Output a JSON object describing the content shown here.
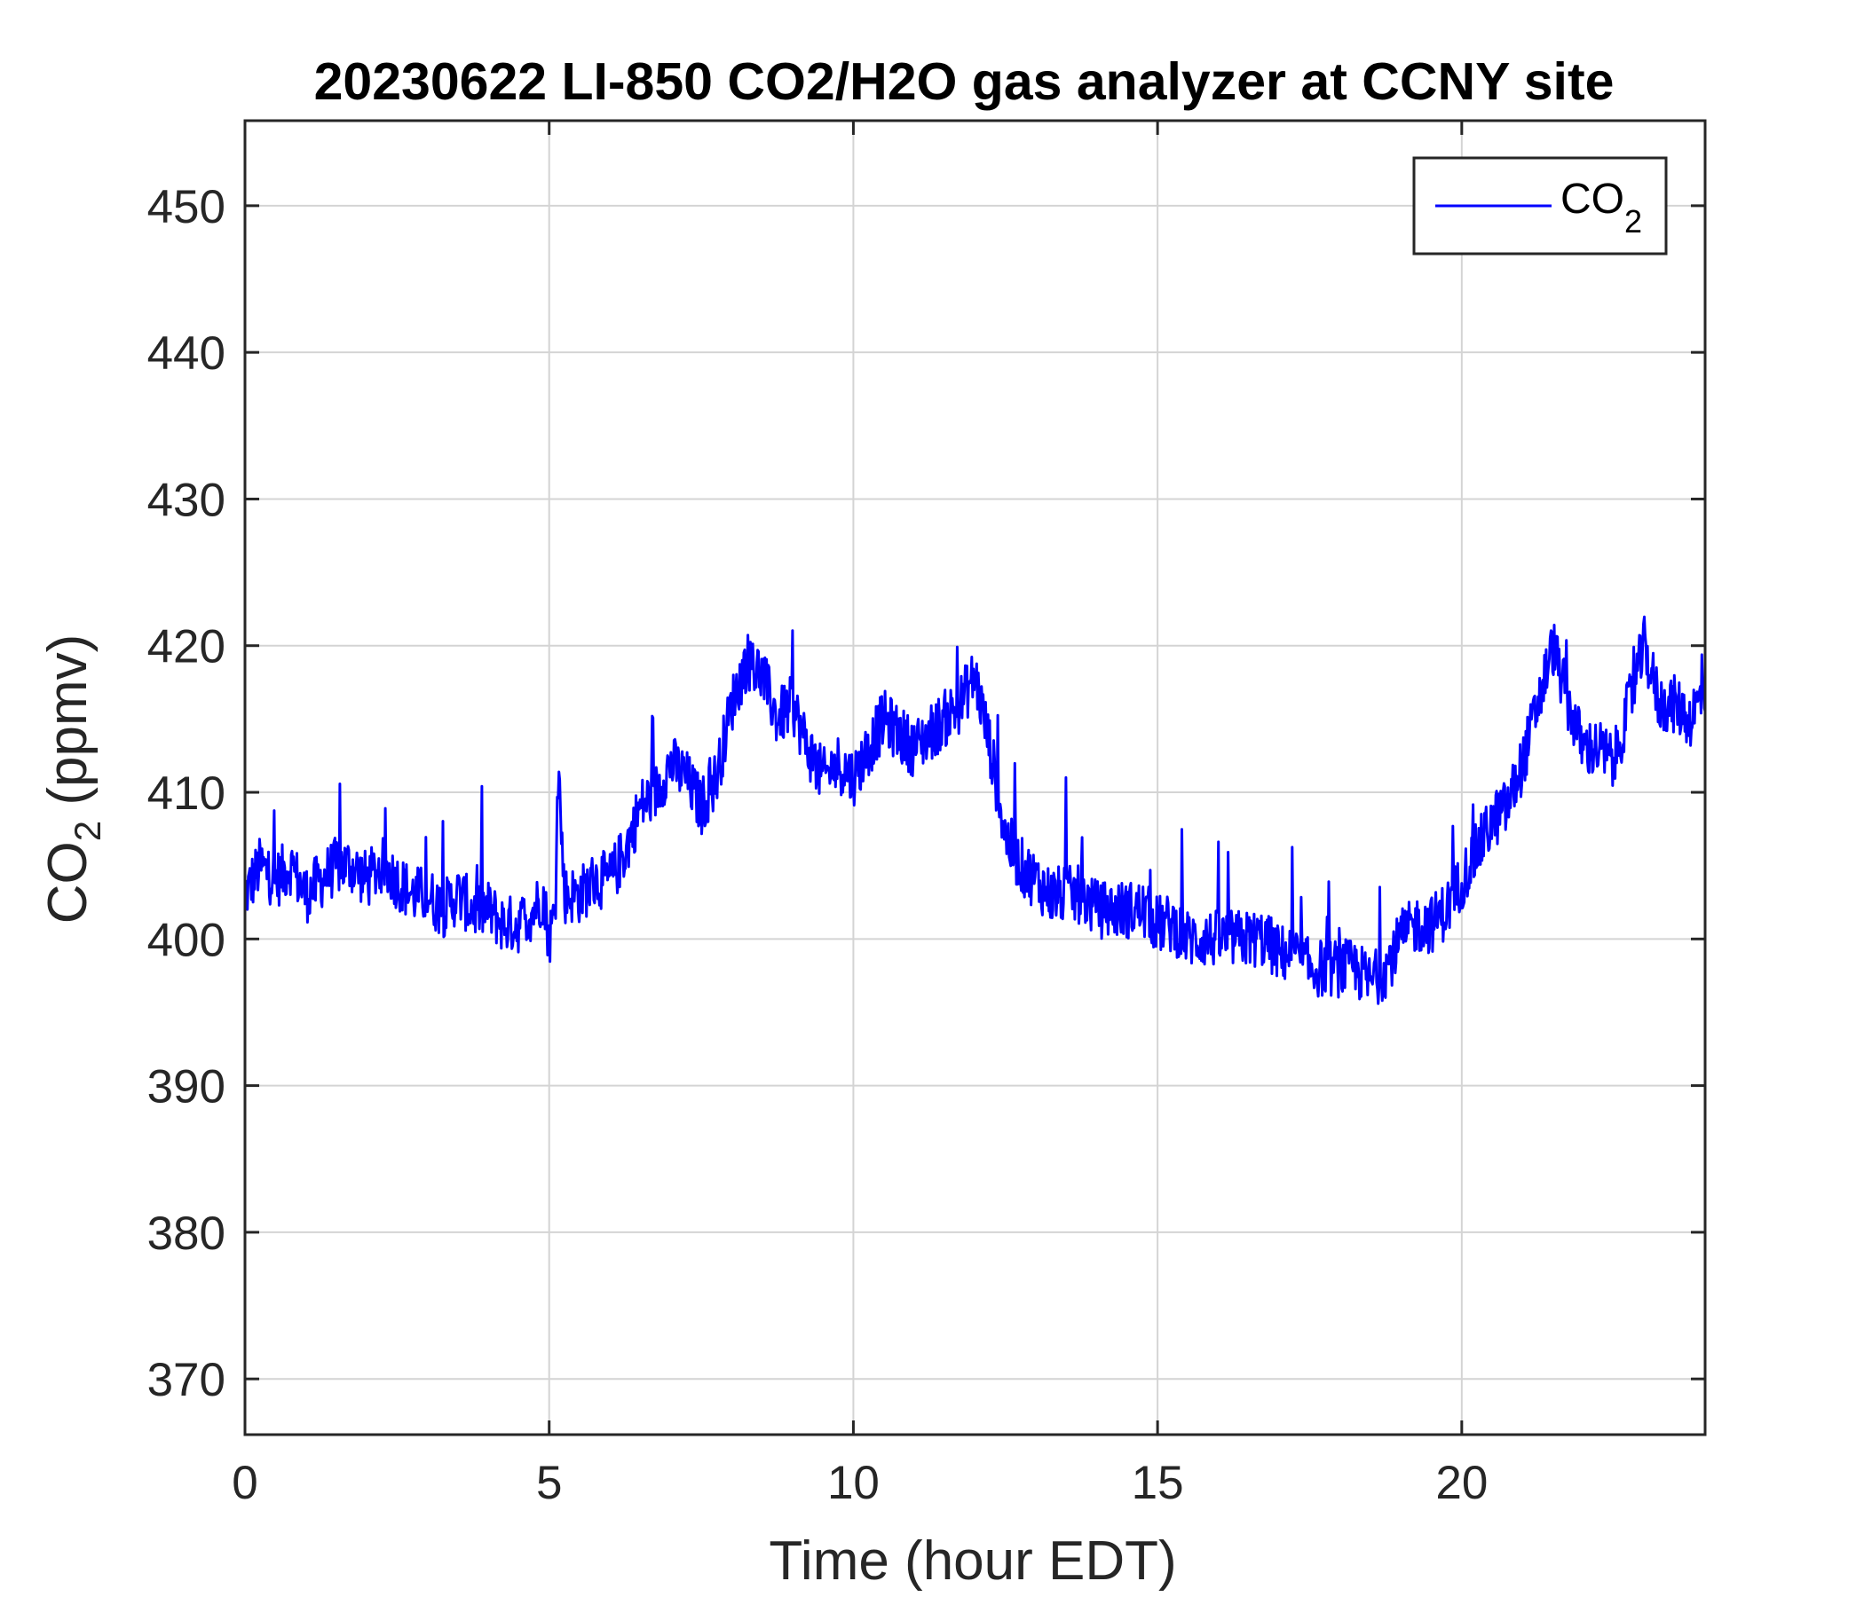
{
  "chart_data": {
    "type": "line",
    "title": "20230622 LI-850 CO2/H2O gas analyzer at CCNY site",
    "xlabel": "Time (hour EDT)",
    "ylabel_main": "CO",
    "ylabel_sub": "2",
    "ylabel_suffix": " (ppmv)",
    "xlim": [
      0,
      24
    ],
    "ylim": [
      366.2,
      455.8
    ],
    "xticks": [
      0,
      5,
      10,
      15,
      20
    ],
    "xtick_labels": [
      "0",
      "5",
      "10",
      "15",
      "20"
    ],
    "yticks": [
      370,
      380,
      390,
      400,
      410,
      420,
      430,
      440,
      450
    ],
    "ytick_labels": [
      "370",
      "380",
      "390",
      "400",
      "410",
      "420",
      "430",
      "440",
      "450"
    ],
    "grid": true,
    "legend_position": "top-right",
    "series": [
      {
        "name": "CO2",
        "legend_main": "CO",
        "legend_sub": "2",
        "color": "#0000ff",
        "x": [
          0,
          0.25,
          0.5,
          0.75,
          1.0,
          1.25,
          1.5,
          1.75,
          2.0,
          2.25,
          2.5,
          2.75,
          3.0,
          3.25,
          3.5,
          3.75,
          4.0,
          4.25,
          4.5,
          4.75,
          4.9,
          5.0,
          5.1,
          5.15,
          5.25,
          5.5,
          5.75,
          6.0,
          6.25,
          6.5,
          6.75,
          7.0,
          7.25,
          7.5,
          7.75,
          8.0,
          8.25,
          8.5,
          8.75,
          9.0,
          9.25,
          9.5,
          9.75,
          10.0,
          10.25,
          10.5,
          10.75,
          11.0,
          11.25,
          11.5,
          11.75,
          12.0,
          12.25,
          12.5,
          12.75,
          13.0,
          13.25,
          13.5,
          13.75,
          14.0,
          14.25,
          14.5,
          14.75,
          15.0,
          15.25,
          15.5,
          15.75,
          16.0,
          16.25,
          16.5,
          16.75,
          17.0,
          17.25,
          17.5,
          17.75,
          18.0,
          18.25,
          18.5,
          18.75,
          19.0,
          19.25,
          19.5,
          19.75,
          20.0,
          20.25,
          20.5,
          20.75,
          21.0,
          21.25,
          21.5,
          21.75,
          22.0,
          22.25,
          22.5,
          22.75,
          23.0,
          23.25,
          23.5,
          23.75,
          24.0
        ],
        "y": [
          403,
          405,
          404,
          405,
          403,
          404,
          405,
          405,
          404,
          405,
          404,
          403,
          403,
          402,
          403,
          402,
          402,
          401,
          401,
          402,
          403,
          400,
          402,
          412,
          403,
          403,
          404,
          404,
          406,
          409,
          410,
          412,
          411,
          409,
          411,
          416,
          419,
          418,
          415,
          416,
          413,
          411,
          412,
          411,
          413,
          415,
          414,
          413,
          414,
          415,
          416,
          418,
          413,
          407,
          405,
          404,
          403,
          403,
          403,
          402,
          402,
          402,
          402,
          401,
          401,
          400,
          400,
          400,
          400,
          400,
          400,
          399,
          399,
          398,
          398,
          398,
          398,
          397,
          398,
          400,
          401,
          401,
          402,
          404,
          406,
          408,
          409,
          412,
          416,
          420,
          416,
          413,
          413,
          412,
          416,
          420,
          416,
          416,
          415,
          417
        ]
      }
    ]
  }
}
